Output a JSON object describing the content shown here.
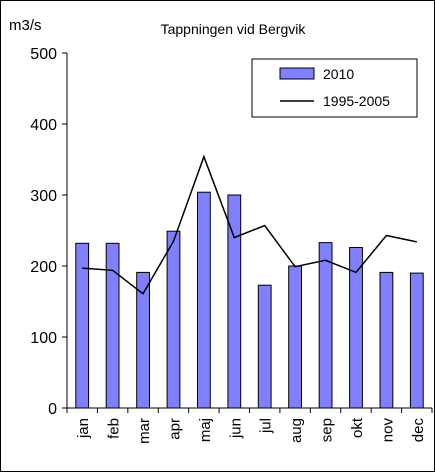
{
  "chart_data": {
    "type": "bar",
    "title": "Tappningen vid Bergvik",
    "ylabel": "m3/s",
    "xlabel": "",
    "ylim": [
      0,
      500
    ],
    "yticks": [
      0,
      100,
      200,
      300,
      400,
      500
    ],
    "grid": false,
    "legend_position": "top-right",
    "categories": [
      "jan",
      "feb",
      "mar",
      "apr",
      "maj",
      "jun",
      "jul",
      "aug",
      "sep",
      "okt",
      "nov",
      "dec"
    ],
    "series": [
      {
        "name": "2010",
        "kind": "bar",
        "color": "#8080ff",
        "values": [
          232,
          232,
          191,
          249,
          304,
          300,
          173,
          200,
          233,
          226,
          191,
          190
        ]
      },
      {
        "name": "1995-2005",
        "kind": "line",
        "color": "#000000",
        "values": [
          197,
          194,
          161,
          235,
          354,
          240,
          257,
          199,
          208,
          191,
          243,
          234
        ]
      }
    ]
  }
}
